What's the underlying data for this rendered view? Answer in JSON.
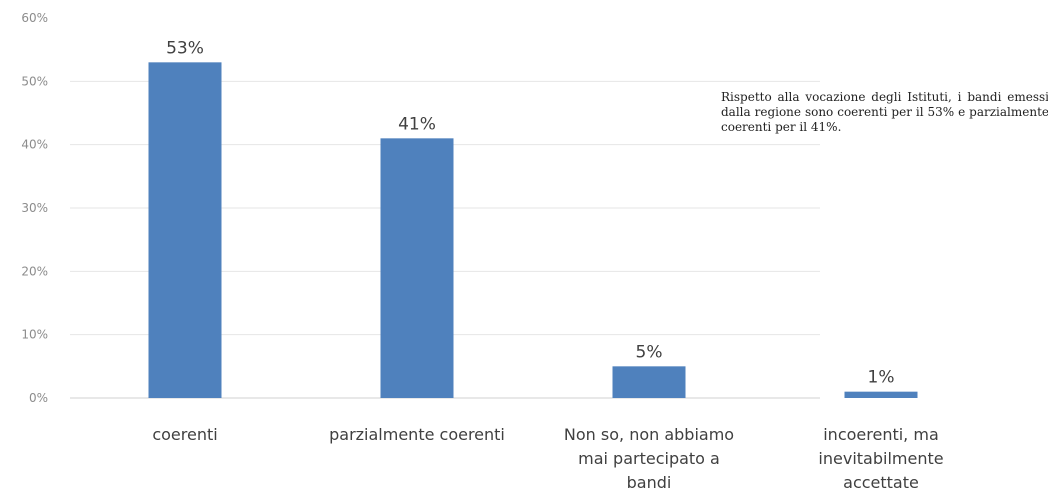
{
  "chart_data": {
    "type": "bar",
    "title": "",
    "xlabel": "",
    "ylabel": "",
    "categories": [
      [
        "coerenti"
      ],
      [
        "parzialmente coerenti"
      ],
      [
        "Non so, non abbiamo",
        "mai partecipato a",
        "bandi"
      ],
      [
        "incoerenti, ma",
        "inevitabilmente",
        "accettate"
      ]
    ],
    "values": [
      53,
      41,
      5,
      1
    ],
    "data_labels": [
      "53%",
      "41%",
      "5%",
      "1%"
    ],
    "ylim": [
      0,
      60
    ],
    "y_ticks": [
      0,
      10,
      20,
      30,
      40,
      50,
      60
    ],
    "y_tick_labels": [
      "0%",
      "10%",
      "20%",
      "30%",
      "40%",
      "50%",
      "60%"
    ],
    "grid": true,
    "legend": "none",
    "bar_color": "#4f81bd"
  },
  "annotation": {
    "text": "Rispetto alla vocazione degli Istituti, i bandi emessi dalla regione sono coerenti per il 53% e parzialmente coerenti per il 41%."
  }
}
